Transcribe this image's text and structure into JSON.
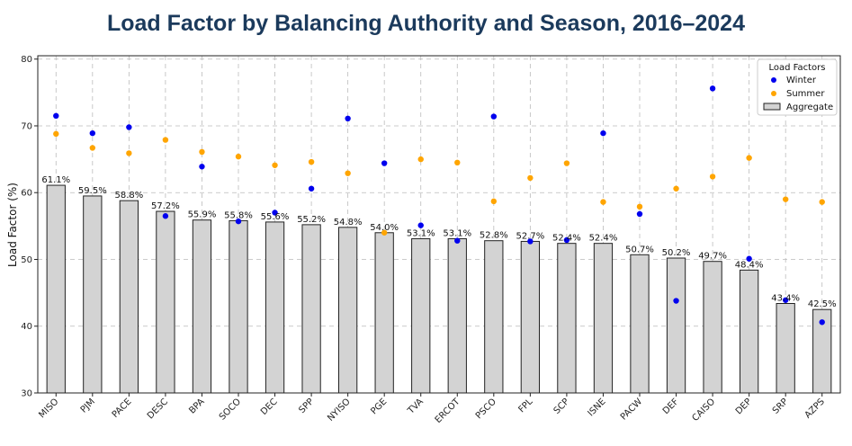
{
  "chart_data": {
    "type": "bar",
    "title": "Load Factor by Balancing Authority and Season, 2016–2024",
    "xlabel": "",
    "ylabel": "Load Factor (%)",
    "ylim": [
      30,
      80.5
    ],
    "yticks": [
      30,
      40,
      50,
      60,
      70,
      80
    ],
    "grid": true,
    "legend": {
      "title": "Load Factors",
      "position": "top-right",
      "winter_label": "Winter",
      "summer_label": "Summer",
      "aggregate_label": "Aggregate"
    },
    "categories": [
      "MISO",
      "PJM",
      "PACE",
      "DESC",
      "BPA",
      "SOCO",
      "DEC",
      "SPP",
      "NYISO",
      "PGE",
      "TVA",
      "ERCOT",
      "PSCO",
      "FPL",
      "SCP",
      "ISNE",
      "PACW",
      "DEF",
      "CAISO",
      "DEP",
      "SRP",
      "AZPS"
    ],
    "series": [
      {
        "name": "Aggregate",
        "kind": "bar",
        "values": [
          61.1,
          59.5,
          58.8,
          57.2,
          55.9,
          55.8,
          55.6,
          55.2,
          54.8,
          54.0,
          53.1,
          53.1,
          52.8,
          52.7,
          52.4,
          52.4,
          50.7,
          50.2,
          49.7,
          48.4,
          43.4,
          42.5
        ],
        "labels": [
          "61.1%",
          "59.5%",
          "58.8%",
          "57.2%",
          "55.9%",
          "55.8%",
          "55.6%",
          "55.2%",
          "54.8%",
          "54.0%",
          "53.1%",
          "53.1%",
          "52.8%",
          "52.7%",
          "52.4%",
          "52.4%",
          "50.7%",
          "50.2%",
          "49.7%",
          "48.4%",
          "43.4%",
          "42.5%"
        ]
      },
      {
        "name": "Winter",
        "kind": "scatter",
        "color": "#0000ee",
        "values": [
          71.5,
          68.9,
          69.8,
          56.5,
          63.9,
          55.7,
          57.0,
          60.6,
          71.1,
          64.4,
          55.1,
          52.8,
          71.4,
          52.7,
          52.9,
          68.9,
          56.8,
          43.8,
          75.6,
          50.1,
          43.9,
          40.6
        ]
      },
      {
        "name": "Summer",
        "kind": "scatter",
        "color": "#ffa500",
        "values": [
          68.8,
          66.7,
          65.9,
          67.9,
          66.1,
          65.4,
          64.1,
          64.6,
          62.9,
          54.0,
          65.0,
          64.5,
          58.7,
          62.2,
          64.4,
          58.6,
          57.9,
          60.6,
          62.4,
          65.2,
          59.0,
          58.6
        ]
      }
    ],
    "colors": {
      "bar_fill": "#d3d3d3",
      "bar_edge": "#222222",
      "winter": "#0000ee",
      "summer": "#ffa500",
      "title": "#1b3a5c"
    }
  }
}
